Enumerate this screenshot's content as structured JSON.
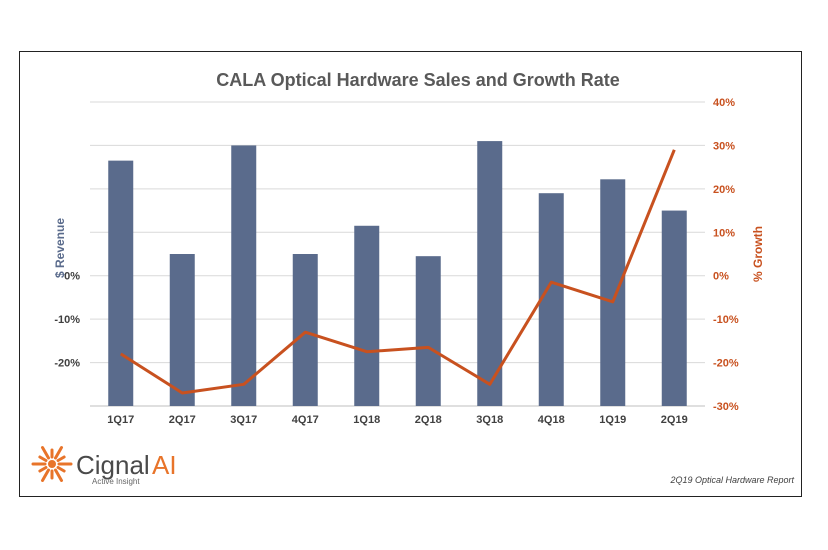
{
  "chart_data": {
    "type": "bar+line",
    "title": "CALA Optical Hardware Sales and Growth Rate",
    "categories": [
      "1Q17",
      "2Q17",
      "3Q17",
      "4Q17",
      "1Q18",
      "2Q18",
      "3Q18",
      "4Q18",
      "1Q19",
      "2Q19"
    ],
    "series": [
      {
        "kind": "bar",
        "axis": "left",
        "values": [
          26.5,
          5,
          30,
          5,
          11.5,
          4.5,
          31,
          19,
          22.2,
          15
        ]
      },
      {
        "name": "% Growth",
        "kind": "line",
        "axis": "right",
        "values": [
          -18,
          -27,
          -25,
          -13,
          -17.5,
          -16.5,
          -25,
          -1.5,
          -6,
          29
        ]
      }
    ],
    "y_left": {
      "label": "$ Revenue",
      "ticks": [],
      "range": [
        -30,
        40
      ]
    },
    "y_right": {
      "label": "% Growth",
      "ticks": [
        "40%",
        "30%",
        "20%",
        "10%",
        "0%",
        "-10%",
        "-20%",
        "-30%"
      ],
      "range": [
        -30,
        40
      ]
    },
    "y_left_axis_ticks_text": [
      "0%",
      "-10%",
      "-20%"
    ],
    "gridlines": true
  },
  "colors": {
    "bar": "#5A6B8C",
    "line": "#C8511F",
    "grid": "#D9D9D9",
    "accent": "#E8742A"
  },
  "branding": {
    "logo_icon": "sunburst-icon",
    "name_part1": "Cignal",
    "name_part2": "AI",
    "tagline": "Active Insight",
    "report_note": "2Q19 Optical Hardware Report"
  }
}
